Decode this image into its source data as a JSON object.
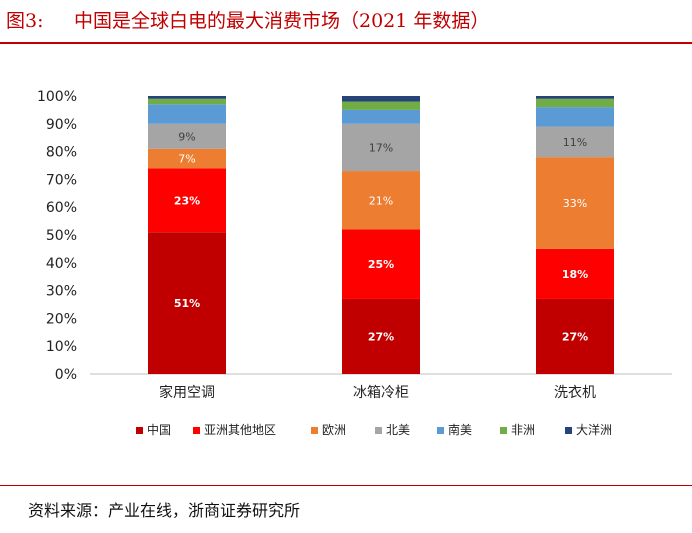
{
  "figure": {
    "number": "图3:",
    "title": "中国是全球白电的最大消费市场（2021 年数据）",
    "source": "资料来源：产业在线，浙商证券研究所"
  },
  "chart_data": {
    "type": "bar",
    "stacked": true,
    "categories": [
      "家用空调",
      "冰箱冷柜",
      "洗衣机"
    ],
    "ylim": [
      0,
      100
    ],
    "yticks": [
      "0%",
      "10%",
      "20%",
      "30%",
      "40%",
      "50%",
      "60%",
      "70%",
      "80%",
      "90%",
      "100%"
    ],
    "legend_position": "bottom",
    "grid": false,
    "series": [
      {
        "name": "中国",
        "color": "#c00000",
        "values": [
          51,
          27,
          27
        ],
        "labels": [
          "51%",
          "27%",
          "27%"
        ]
      },
      {
        "name": "亚洲其他地区",
        "color": "#ff0000",
        "values": [
          23,
          25,
          18
        ],
        "labels": [
          "23%",
          "25%",
          "18%"
        ]
      },
      {
        "name": "欧洲",
        "color": "#ed7d31",
        "values": [
          7,
          21,
          33
        ],
        "labels": [
          "7%",
          "21%",
          "33%"
        ]
      },
      {
        "name": "北美",
        "color": "#a5a5a5",
        "values": [
          9,
          17,
          11
        ],
        "labels": [
          "9%",
          "17%",
          "11%"
        ]
      },
      {
        "name": "南美",
        "color": "#5b9bd5",
        "values": [
          7,
          5,
          7
        ],
        "labels": [
          "",
          "",
          ""
        ]
      },
      {
        "name": "非洲",
        "color": "#70ad47",
        "values": [
          2,
          3,
          3
        ],
        "labels": [
          "",
          "",
          ""
        ]
      },
      {
        "name": "大洋洲",
        "color": "#264478",
        "values": [
          1,
          2,
          1
        ],
        "labels": [
          "",
          "",
          ""
        ]
      }
    ]
  }
}
